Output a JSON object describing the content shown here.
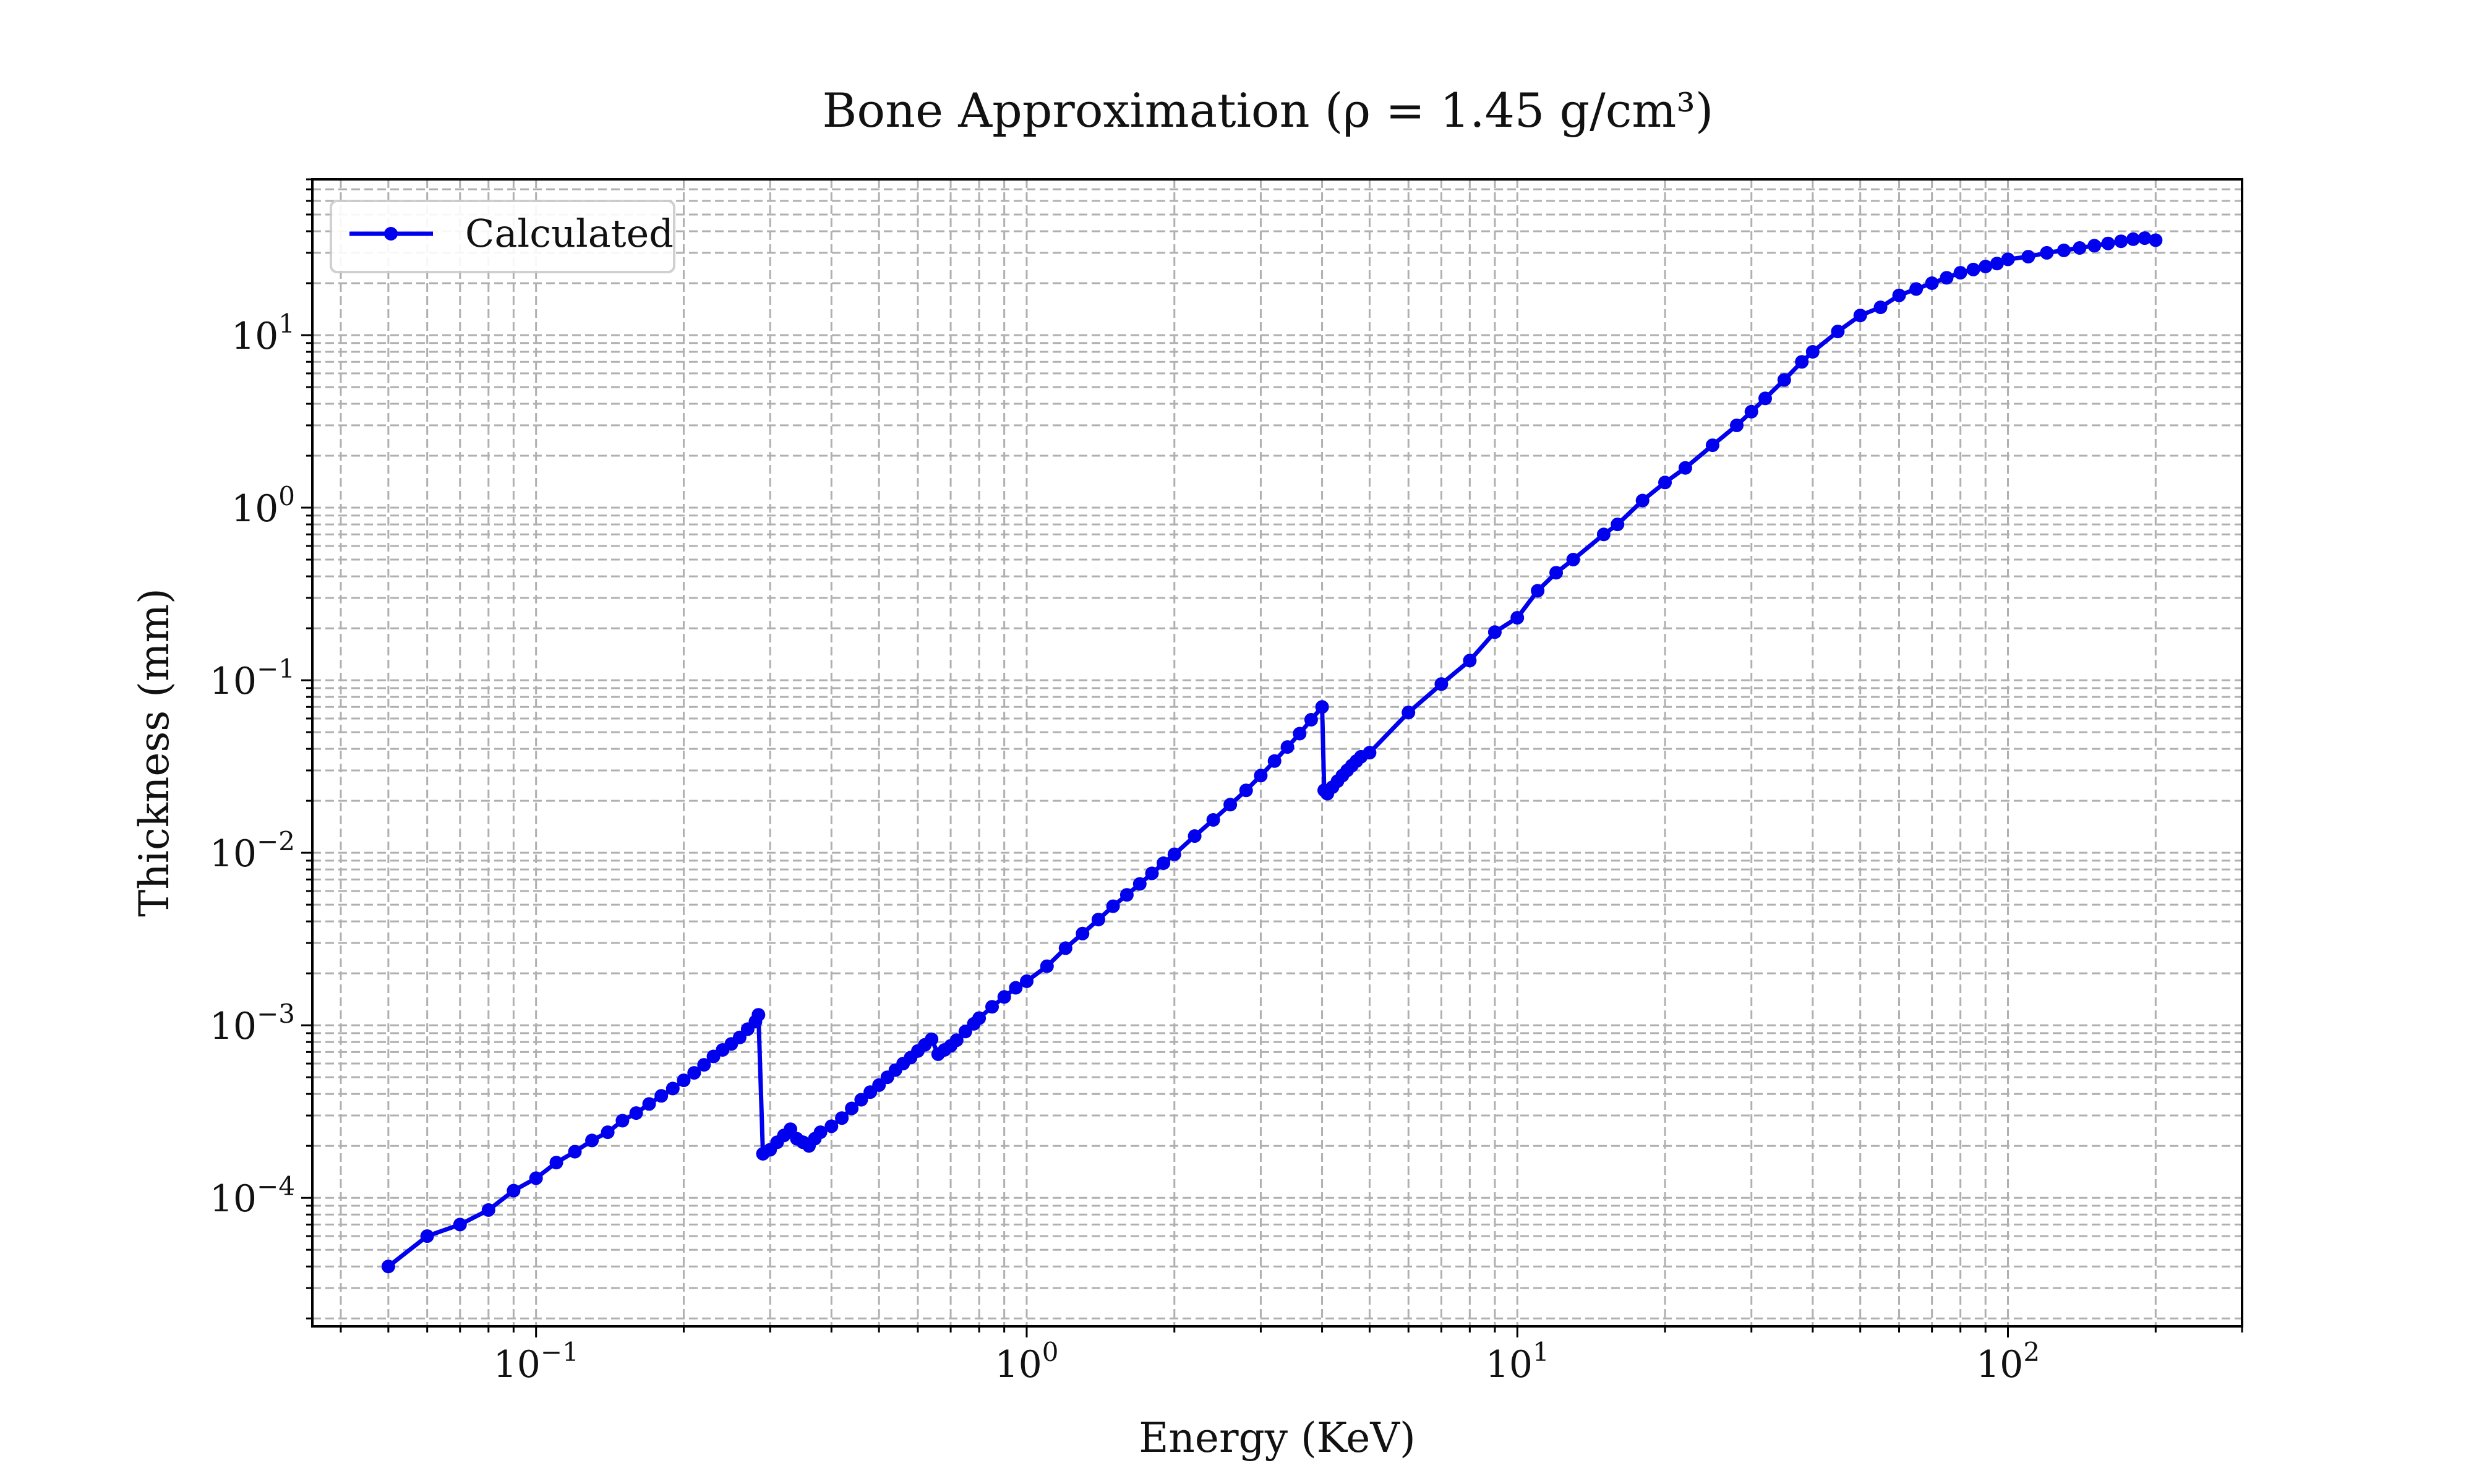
{
  "chart_data": {
    "type": "line",
    "title": "Bone Approximation (ρ = 1.45 g/cm³)",
    "xlabel": "Energy (KeV)",
    "ylabel": "Thickness (mm)",
    "xscale": "log",
    "yscale": "log",
    "xlim": [
      0.035,
      300
    ],
    "ylim": [
      1.8e-05,
      80
    ],
    "grid": "major and minor, dashed",
    "legend_placement": "upper-left",
    "line_color": "#0000ee",
    "x_ticks": [
      {
        "base": "10",
        "exp": "−1",
        "value": 0.1
      },
      {
        "base": "10",
        "exp": "0",
        "value": 1
      },
      {
        "base": "10",
        "exp": "1",
        "value": 10
      },
      {
        "base": "10",
        "exp": "2",
        "value": 100
      }
    ],
    "y_ticks": [
      {
        "base": "10",
        "exp": "−4",
        "value": 0.0001
      },
      {
        "base": "10",
        "exp": "−3",
        "value": 0.001
      },
      {
        "base": "10",
        "exp": "−2",
        "value": 0.01
      },
      {
        "base": "10",
        "exp": "−1",
        "value": 0.1
      },
      {
        "base": "10",
        "exp": "0",
        "value": 1
      },
      {
        "base": "10",
        "exp": "1",
        "value": 10
      }
    ],
    "series": [
      {
        "name": "Calculated",
        "x": [
          0.05,
          0.06,
          0.07,
          0.08,
          0.09,
          0.1,
          0.11,
          0.12,
          0.13,
          0.14,
          0.15,
          0.16,
          0.17,
          0.18,
          0.19,
          0.2,
          0.21,
          0.22,
          0.23,
          0.24,
          0.25,
          0.26,
          0.27,
          0.28,
          0.284,
          0.29,
          0.3,
          0.31,
          0.32,
          0.33,
          0.34,
          0.35,
          0.36,
          0.37,
          0.38,
          0.4,
          0.42,
          0.44,
          0.46,
          0.48,
          0.5,
          0.52,
          0.54,
          0.56,
          0.58,
          0.6,
          0.62,
          0.64,
          0.66,
          0.68,
          0.7,
          0.72,
          0.75,
          0.78,
          0.8,
          0.85,
          0.9,
          0.95,
          1.0,
          1.1,
          1.2,
          1.3,
          1.4,
          1.5,
          1.6,
          1.7,
          1.8,
          1.9,
          2.0,
          2.2,
          2.4,
          2.6,
          2.8,
          3.0,
          3.2,
          3.4,
          3.6,
          3.8,
          4.0,
          4.04,
          4.1,
          4.2,
          4.3,
          4.4,
          4.5,
          4.6,
          4.7,
          4.8,
          5.0,
          6.0,
          7.0,
          8.0,
          9.0,
          10.0,
          11.0,
          12.0,
          13.0,
          15.0,
          16.0,
          18.0,
          20.0,
          22.0,
          25.0,
          28.0,
          30.0,
          32.0,
          35.0,
          38.0,
          40.0,
          45.0,
          50.0,
          55.0,
          60.0,
          65.0,
          70.0,
          75.0,
          80.0,
          85.0,
          90.0,
          95.0,
          100.0,
          110.0,
          120.0,
          130.0,
          140.0,
          150.0,
          160.0,
          170.0,
          180.0,
          190.0,
          200.0
        ],
        "y": [
          4e-05,
          6e-05,
          7e-05,
          8.5e-05,
          0.00011,
          0.00013,
          0.00016,
          0.000185,
          0.000215,
          0.00024,
          0.00028,
          0.00031,
          0.00035,
          0.00039,
          0.00043,
          0.00048,
          0.00053,
          0.00059,
          0.00066,
          0.00072,
          0.00078,
          0.00085,
          0.00095,
          0.00105,
          0.00115,
          0.00018,
          0.00019,
          0.00021,
          0.00023,
          0.00025,
          0.00022,
          0.00021,
          0.0002,
          0.00022,
          0.00024,
          0.00026,
          0.00029,
          0.00033,
          0.00037,
          0.00041,
          0.00045,
          0.0005,
          0.00055,
          0.0006,
          0.00065,
          0.00071,
          0.00077,
          0.00083,
          0.00068,
          0.00072,
          0.00076,
          0.00082,
          0.00092,
          0.00102,
          0.0011,
          0.00128,
          0.00146,
          0.00165,
          0.0018,
          0.0022,
          0.0028,
          0.0034,
          0.0041,
          0.0049,
          0.0057,
          0.0066,
          0.0076,
          0.0087,
          0.0098,
          0.0125,
          0.0155,
          0.019,
          0.023,
          0.028,
          0.034,
          0.041,
          0.049,
          0.059,
          0.07,
          0.023,
          0.022,
          0.024,
          0.026,
          0.028,
          0.03,
          0.032,
          0.034,
          0.036,
          0.038,
          0.065,
          0.095,
          0.13,
          0.19,
          0.23,
          0.33,
          0.42,
          0.5,
          0.7,
          0.8,
          1.1,
          1.4,
          1.7,
          2.3,
          3.0,
          3.6,
          4.3,
          5.5,
          7.0,
          8.0,
          10.5,
          13.0,
          14.5,
          17.0,
          18.5,
          20.0,
          21.5,
          23.0,
          24.0,
          25.0,
          26.0,
          27.5,
          28.5,
          30.0,
          31.0,
          32.0,
          33.0,
          34.0,
          35.0,
          36.0,
          36.5,
          35.5
        ]
      }
    ]
  }
}
